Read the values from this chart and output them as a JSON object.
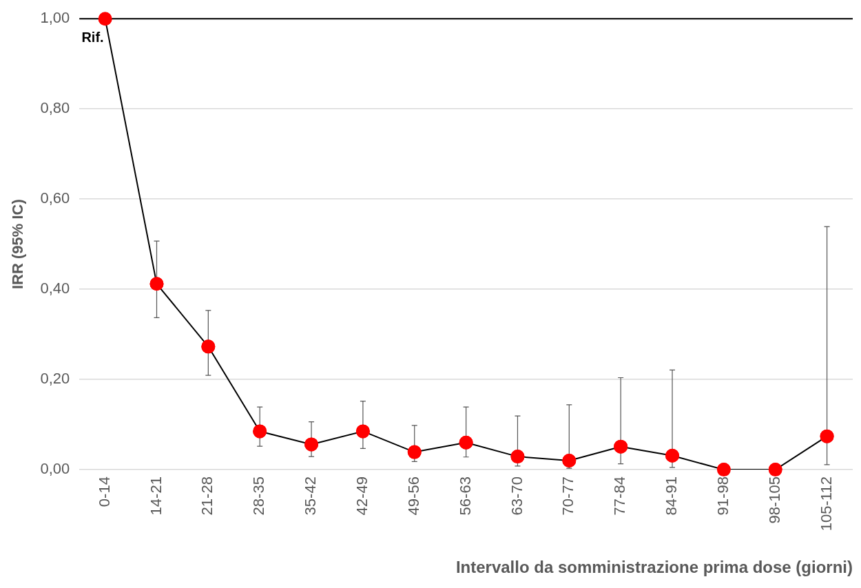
{
  "chart_data": {
    "type": "line",
    "xlabel": "Intervallo da somministrazione prima dose (giorni)",
    "ylabel": "IRR (95% IC)",
    "categories": [
      "0-14",
      "14-21",
      "21-28",
      "28-35",
      "35-42",
      "42-49",
      "49-56",
      "56-63",
      "63-70",
      "70-77",
      "77-84",
      "84-91",
      "91-98",
      "98-105",
      "105-112"
    ],
    "series": [
      {
        "color": "#ff0000",
        "values": [
          1.0,
          0.412,
          0.273,
          0.085,
          0.056,
          0.085,
          0.039,
          0.06,
          0.029,
          0.02,
          0.051,
          0.031,
          0,
          0,
          0.074
        ],
        "errors": [
          null,
          [
            0.337,
            0.507
          ],
          [
            0.209,
            0.353
          ],
          [
            0.052,
            0.139
          ],
          [
            0.029,
            0.106
          ],
          [
            0.047,
            0.152
          ],
          [
            0.018,
            0.098
          ],
          [
            0.028,
            0.139
          ],
          [
            0.008,
            0.119
          ],
          [
            0.003,
            0.144
          ],
          [
            0.013,
            0.204
          ],
          [
            0.005,
            0.221
          ],
          null,
          null,
          [
            0.011,
            0.539
          ]
        ]
      }
    ],
    "ylim": [
      0,
      1.0
    ],
    "yticks": [
      {
        "value": 0,
        "label": "0,00"
      },
      {
        "value": 0.2,
        "label": "0,20"
      },
      {
        "value": 0.4,
        "label": "0,40"
      },
      {
        "value": 0.6,
        "label": "0,60"
      },
      {
        "value": 0.8,
        "label": "0,80"
      },
      {
        "value": 1.0,
        "label": "1,00"
      }
    ],
    "ref_lines": [
      {
        "axis": "y",
        "value": 1.0,
        "color": "#000000"
      }
    ],
    "annotations": [
      {
        "text": "Rif.",
        "x": "0-14",
        "y": 1.0
      }
    ],
    "grid": "y",
    "legend": false,
    "marker": "circle",
    "line_style": "solid"
  }
}
